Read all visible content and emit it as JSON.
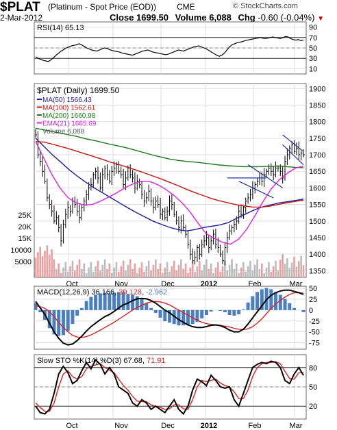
{
  "header": {
    "symbol": "$PLAT",
    "name": "(Platinum  - Spot Price (EOD))",
    "exchange": "CME",
    "date": "2-Mar-2012",
    "close_label": "Close",
    "close": "1699.50",
    "volume_label": "Volume",
    "volume": "6,088",
    "chg_label": "Chg",
    "chg": "-0.60 (-0.04%)",
    "watermark": "© StockCharts.com",
    "down_color": "#cc0000"
  },
  "chart_data": [
    {
      "type": "line",
      "panel": "rsi",
      "title": "RSI(14) 65.13",
      "ylim": [
        0,
        100
      ],
      "ticks": [
        90,
        70,
        50,
        30,
        10
      ],
      "overbought": 70,
      "oversold": 30,
      "series": [
        {
          "name": "RSI(14)",
          "values": [
            33,
            30,
            28,
            26,
            25,
            24,
            27,
            31,
            36,
            40,
            44,
            47,
            50,
            52,
            54,
            55,
            56,
            58,
            56,
            53,
            50,
            48,
            46,
            45,
            44,
            46,
            48,
            50,
            49,
            47,
            45,
            44,
            43,
            42,
            40,
            39,
            38,
            37,
            36,
            38,
            40,
            42,
            44,
            45,
            46,
            44,
            42,
            41,
            40,
            39,
            38,
            37,
            38,
            40,
            42,
            44,
            46,
            45,
            44,
            46,
            48,
            50,
            52,
            53,
            54,
            52,
            50,
            48,
            45,
            42,
            39,
            36,
            34,
            36,
            40,
            46,
            52,
            56,
            58,
            60,
            61,
            62,
            64,
            65,
            66,
            67,
            68,
            69,
            70,
            69,
            68,
            69,
            70,
            71,
            70,
            69,
            68,
            70,
            72,
            71,
            68,
            66,
            65,
            66,
            64,
            65
          ]
        }
      ]
    },
    {
      "type": "ohlc",
      "panel": "price",
      "title": "$PLAT (Daily) 1699.50",
      "ylim": [
        1330,
        1915
      ],
      "ticks": [
        1900,
        1850,
        1800,
        1750,
        1700,
        1650,
        1600,
        1550,
        1500,
        1450,
        1400,
        1350
      ],
      "x_labels": [
        "Oct",
        "Nov",
        "Dec",
        "2012",
        "Feb",
        "Mar"
      ],
      "close": [
        1760,
        1700,
        1680,
        1650,
        1620,
        1570,
        1550,
        1530,
        1500,
        1510,
        1480,
        1440,
        1490,
        1520,
        1540,
        1530,
        1560,
        1550,
        1530,
        1510,
        1540,
        1560,
        1580,
        1600,
        1610,
        1640,
        1650,
        1630,
        1600,
        1640,
        1660,
        1640,
        1620,
        1650,
        1660,
        1670,
        1650,
        1640,
        1610,
        1630,
        1660,
        1640,
        1630,
        1600,
        1620,
        1610,
        1580,
        1560,
        1570,
        1590,
        1560,
        1540,
        1560,
        1550,
        1520,
        1530,
        1510,
        1530,
        1560,
        1550,
        1520,
        1500,
        1480,
        1500,
        1480,
        1460,
        1430,
        1400,
        1380,
        1390,
        1420,
        1400,
        1430,
        1440,
        1450,
        1420,
        1440,
        1460,
        1430,
        1420,
        1400,
        1380,
        1420,
        1450,
        1470,
        1480,
        1490,
        1500,
        1530,
        1520,
        1540,
        1560,
        1570,
        1580,
        1600,
        1610,
        1620,
        1630,
        1620,
        1640,
        1650,
        1660,
        1650,
        1640,
        1660,
        1660,
        1650,
        1630,
        1680,
        1700,
        1720,
        1730,
        1710,
        1720,
        1700,
        1705,
        1700
      ],
      "ma": [
        {
          "name": "MA(50)",
          "label": "MA(50) 1566.43",
          "color": "#1c1c9c",
          "values": [
            1750,
            1725,
            1700,
            1678,
            1655,
            1635,
            1617,
            1600,
            1585,
            1570,
            1555,
            1540,
            1526,
            1513,
            1500,
            1490,
            1481,
            1474,
            1470,
            1474,
            1480,
            1484,
            1488,
            1495,
            1508,
            1520,
            1532,
            1542,
            1548,
            1554,
            1558,
            1562,
            1566
          ]
        },
        {
          "name": "MA(100)",
          "label": "MA(100) 1562.61",
          "color": "#cc1111",
          "values": [
            1740,
            1738,
            1732,
            1725,
            1718,
            1710,
            1702,
            1694,
            1686,
            1677,
            1670,
            1662,
            1654,
            1645,
            1636,
            1627,
            1617,
            1607,
            1596,
            1586,
            1577,
            1568,
            1561,
            1555,
            1549,
            1545,
            1542,
            1542,
            1545,
            1550,
            1555,
            1559,
            1563
          ]
        },
        {
          "name": "MA(200)",
          "label": "MA(200) 1660.98",
          "color": "#1a7a1a",
          "values": [
            1780,
            1775,
            1770,
            1765,
            1760,
            1755,
            1748,
            1743,
            1737,
            1731,
            1726,
            1720,
            1713,
            1706,
            1699,
            1693,
            1687,
            1683,
            1680,
            1678,
            1675,
            1672,
            1669,
            1667,
            1665,
            1664,
            1664,
            1664,
            1665,
            1666,
            1664,
            1662,
            1661
          ]
        },
        {
          "name": "EMA(21)",
          "label": "EMA(21) 1665.69",
          "color": "#e020e0",
          "values": [
            1740,
            1690,
            1640,
            1600,
            1570,
            1555,
            1548,
            1550,
            1560,
            1572,
            1585,
            1600,
            1612,
            1620,
            1620,
            1610,
            1596,
            1578,
            1556,
            1528,
            1494,
            1462,
            1448,
            1436,
            1430,
            1445,
            1475,
            1515,
            1558,
            1596,
            1624,
            1644,
            1660,
            1666
          ]
        }
      ],
      "volume_label": "Volume 6,088",
      "volume_ticks": [
        "25K",
        "20K",
        "15K",
        "10000",
        "5000"
      ]
    },
    {
      "type": "line",
      "panel": "macd",
      "title": "MACD(12,26,9)",
      "title_value": "36.166,",
      "signal_value": "39.128,",
      "hist_value": "-2.962",
      "ylim": [
        -90,
        55
      ],
      "ticks": [
        50,
        25,
        0,
        -25,
        -50,
        -75
      ],
      "series": [
        {
          "name": "MACD",
          "values": [
            20,
            5,
            -10,
            -30,
            -50,
            -65,
            -76,
            -80,
            -78,
            -70,
            -60,
            -48,
            -38,
            -30,
            -22,
            -15,
            -10,
            -3,
            5,
            12,
            16,
            22,
            26,
            27,
            26,
            22,
            16,
            8,
            0,
            -6,
            -14,
            -22,
            -28,
            -34,
            -38,
            -40,
            -40,
            -38,
            -35,
            -34,
            -36,
            -40,
            -46,
            -50,
            -50,
            -44,
            -32,
            -18,
            -4,
            10,
            24,
            34,
            40,
            44,
            46,
            46,
            43,
            40,
            36
          ]
        },
        {
          "name": "Signal",
          "values": [
            10,
            8,
            4,
            -4,
            -15,
            -28,
            -40,
            -50,
            -58,
            -62,
            -63,
            -61,
            -57,
            -52,
            -46,
            -40,
            -34,
            -28,
            -21,
            -14,
            -7,
            0,
            6,
            11,
            16,
            19,
            20,
            19,
            16,
            12,
            6,
            0,
            -6,
            -12,
            -18,
            -23,
            -28,
            -31,
            -33,
            -34,
            -35,
            -37,
            -39,
            -42,
            -44,
            -45,
            -43,
            -38,
            -30,
            -20,
            -8,
            4,
            14,
            22,
            30,
            36,
            40,
            40,
            39
          ]
        }
      ]
    },
    {
      "type": "line",
      "panel": "sto",
      "title": "Slow STO %K(14) %D(3)",
      "k_value": "67.68,",
      "d_value": "71.91",
      "ylim": [
        0,
        100
      ],
      "ticks": [
        80,
        50,
        20
      ],
      "x_labels": [
        "Oct",
        "Nov",
        "Dec",
        "2012",
        "Feb",
        "Mar"
      ],
      "series": [
        {
          "name": "%K",
          "values": [
            20,
            10,
            8,
            15,
            40,
            70,
            82,
            72,
            55,
            60,
            75,
            88,
            78,
            92,
            85,
            70,
            80,
            70,
            50,
            45,
            40,
            25,
            20,
            30,
            25,
            15,
            20,
            15,
            10,
            20,
            30,
            15,
            8,
            20,
            45,
            62,
            58,
            52,
            68,
            60,
            50,
            48,
            50,
            30,
            20,
            40,
            60,
            80,
            85,
            88,
            86,
            90,
            88,
            80,
            60,
            55,
            70,
            80,
            68
          ]
        },
        {
          "name": "%D",
          "values": [
            25,
            18,
            12,
            12,
            25,
            50,
            70,
            75,
            66,
            62,
            66,
            78,
            82,
            84,
            86,
            80,
            76,
            72,
            62,
            52,
            45,
            35,
            28,
            27,
            27,
            22,
            20,
            18,
            15,
            16,
            22,
            22,
            16,
            15,
            30,
            50,
            60,
            58,
            60,
            62,
            56,
            52,
            50,
            42,
            32,
            32,
            45,
            66,
            80,
            86,
            88,
            88,
            89,
            86,
            74,
            63,
            62,
            72,
            72
          ]
        }
      ]
    }
  ]
}
